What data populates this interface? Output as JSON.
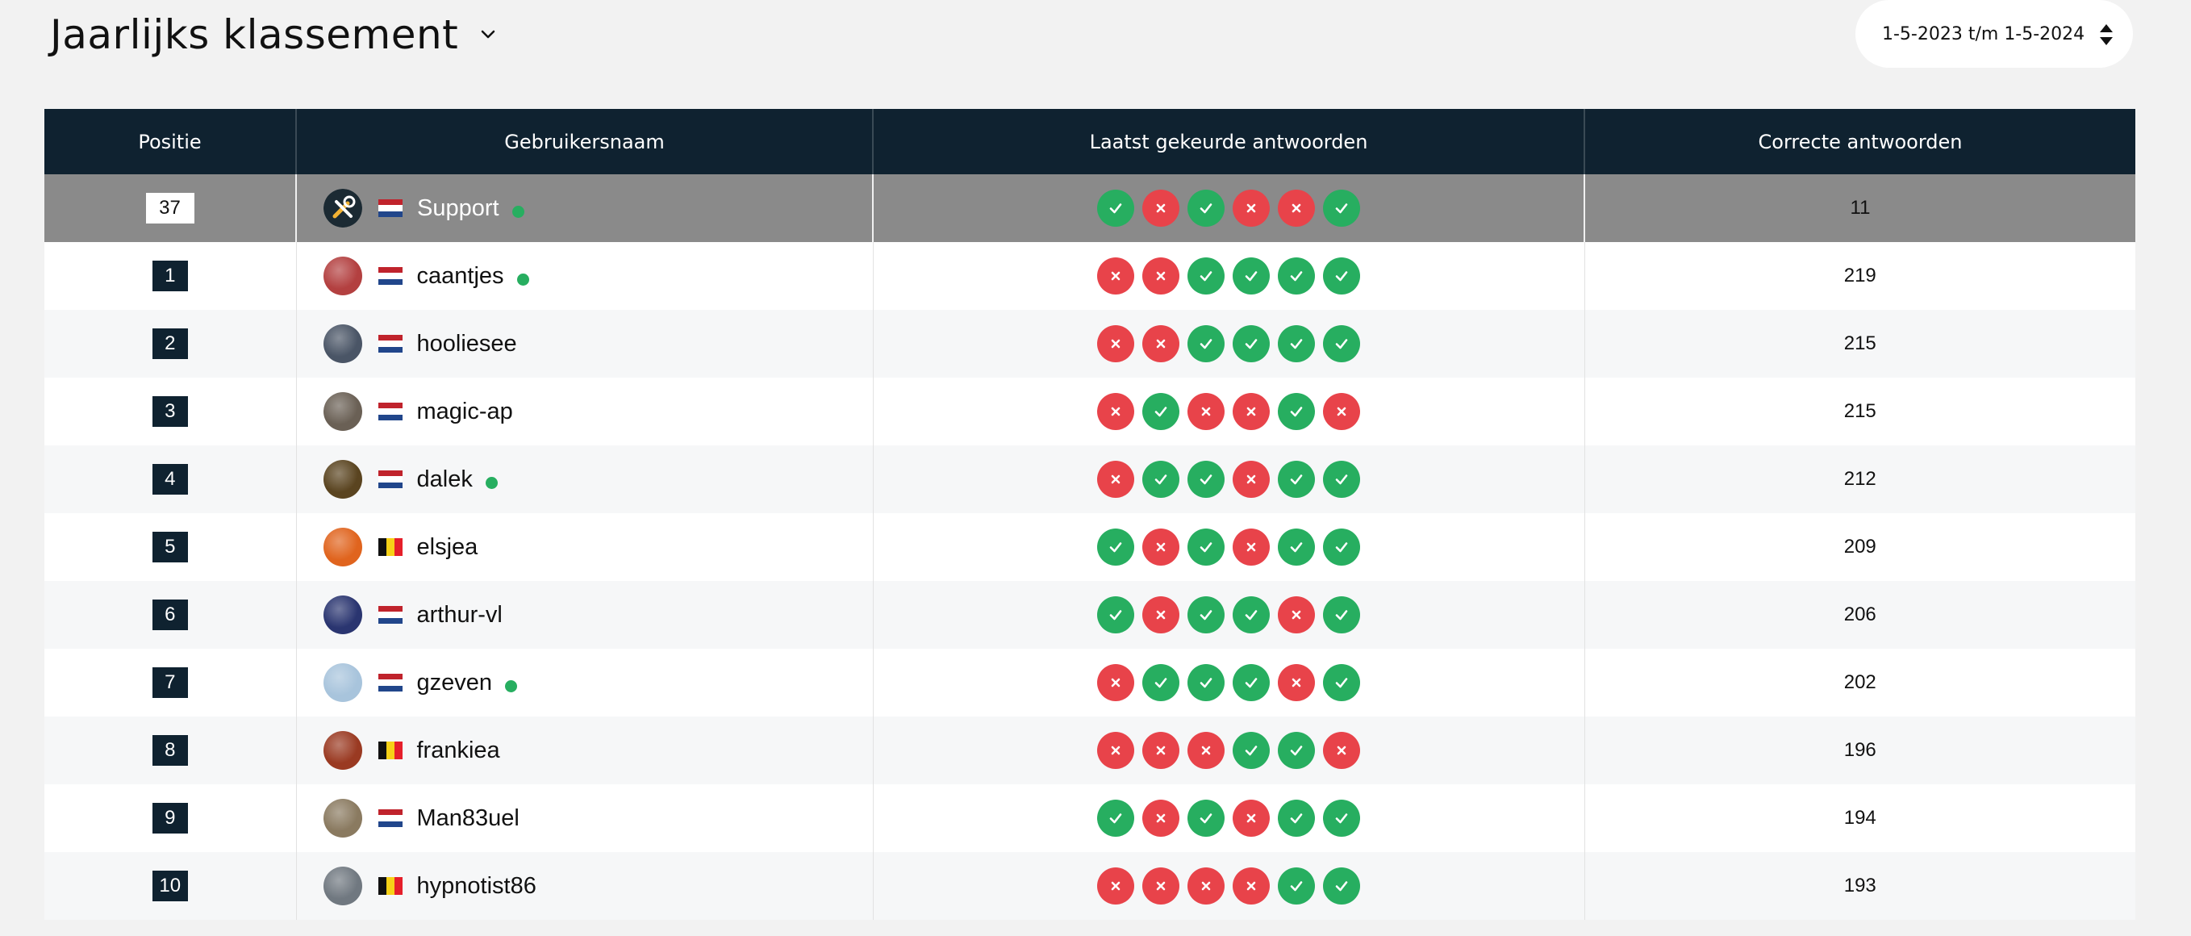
{
  "header": {
    "title": "Jaarlijks klassement",
    "date_range": "1-5-2023 t/m 1-5-2024"
  },
  "table": {
    "columns": [
      "Positie",
      "Gebruikersnaam",
      "Laatst gekeurde antwoorden",
      "Correcte antwoorden"
    ],
    "rows": [
      {
        "position": "37",
        "username": "Support",
        "flag": "nl",
        "online": true,
        "self": true,
        "answers": [
          1,
          0,
          1,
          0,
          0,
          1
        ],
        "correct": "11",
        "avatar": "tools-avatar",
        "avatar_color": "#1b2a33"
      },
      {
        "position": "1",
        "username": "caantjes",
        "flag": "nl",
        "online": true,
        "answers": [
          0,
          0,
          1,
          1,
          1,
          1
        ],
        "correct": "219",
        "avatar": "photo-avatar",
        "avatar_color": "#b34040"
      },
      {
        "position": "2",
        "username": "hooliesee",
        "flag": "nl",
        "online": false,
        "answers": [
          0,
          0,
          1,
          1,
          1,
          1
        ],
        "correct": "215",
        "avatar": "photo-avatar",
        "avatar_color": "#4a5566"
      },
      {
        "position": "3",
        "username": "magic-ap",
        "flag": "nl",
        "online": false,
        "answers": [
          0,
          1,
          0,
          0,
          1,
          0
        ],
        "correct": "215",
        "avatar": "photo-avatar",
        "avatar_color": "#6a6055"
      },
      {
        "position": "4",
        "username": "dalek",
        "flag": "nl",
        "online": true,
        "answers": [
          0,
          1,
          1,
          0,
          1,
          1
        ],
        "correct": "212",
        "avatar": "photo-avatar",
        "avatar_color": "#5a4420"
      },
      {
        "position": "5",
        "username": "elsjea",
        "flag": "be",
        "online": false,
        "answers": [
          1,
          0,
          1,
          0,
          1,
          1
        ],
        "correct": "209",
        "avatar": "photo-avatar",
        "avatar_color": "#e0641e"
      },
      {
        "position": "6",
        "username": "arthur-vl",
        "flag": "nl",
        "online": false,
        "answers": [
          1,
          0,
          1,
          1,
          0,
          1
        ],
        "correct": "206",
        "avatar": "photo-avatar",
        "avatar_color": "#2a3570"
      },
      {
        "position": "7",
        "username": "gzeven",
        "flag": "nl",
        "online": true,
        "answers": [
          0,
          1,
          1,
          1,
          0,
          1
        ],
        "correct": "202",
        "avatar": "photo-avatar",
        "avatar_color": "#a8c4dc"
      },
      {
        "position": "8",
        "username": "frankiea",
        "flag": "be",
        "online": false,
        "answers": [
          0,
          0,
          0,
          1,
          1,
          0
        ],
        "correct": "196",
        "avatar": "photo-avatar",
        "avatar_color": "#9a3a22"
      },
      {
        "position": "9",
        "username": "Man83uel",
        "flag": "nl",
        "online": false,
        "answers": [
          1,
          0,
          1,
          0,
          1,
          1
        ],
        "correct": "194",
        "avatar": "photo-avatar",
        "avatar_color": "#8a7a60"
      },
      {
        "position": "10",
        "username": "hypnotist86",
        "flag": "be",
        "online": false,
        "answers": [
          0,
          0,
          0,
          0,
          1,
          1
        ],
        "correct": "193",
        "avatar": "photo-avatar",
        "avatar_color": "#707880"
      }
    ]
  },
  "colors": {
    "header_bg": "#0f2230",
    "correct": "#27ae60",
    "wrong": "#e8434a",
    "self_row": "#8a8a8a",
    "online": "#27ae60"
  },
  "icons": {
    "title_dropdown": "chevron-down-icon",
    "date_sort": "sort-arrows-icon",
    "correct": "check-icon",
    "wrong": "cross-icon"
  }
}
